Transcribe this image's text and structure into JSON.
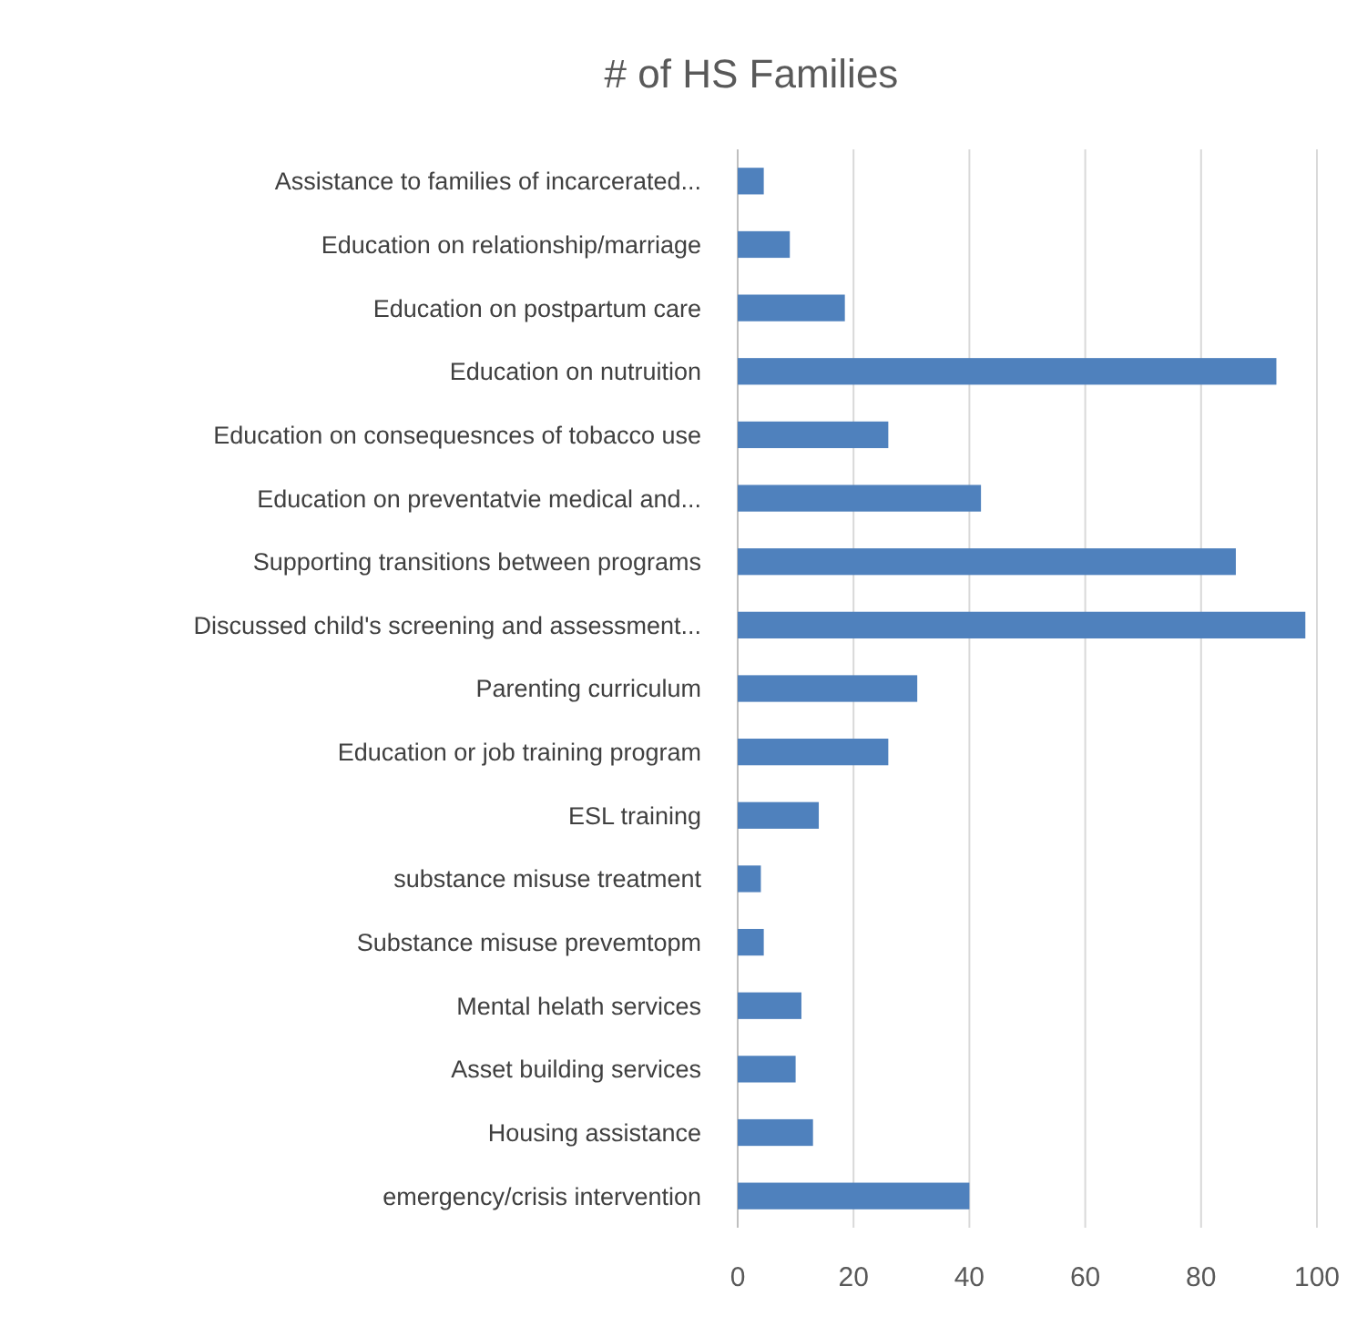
{
  "chart_data": {
    "type": "bar",
    "orientation": "horizontal",
    "title": "# of HS Families",
    "categories": [
      "Assistance to families of incarcerated...",
      "Education on relationship/marriage",
      "Education on postpartum care",
      "Education on nutruition",
      "Education on consequesnces of tobacco use",
      "Education on preventatvie medical and...",
      "Supporting transitions between programs",
      "Discussed child's screening and assessment...",
      "Parenting curriculum",
      "Education or job training program",
      "ESL training",
      "substance misuse treatment",
      "Substance misuse prevemtopm",
      "Mental helath services",
      "Asset building services",
      "Housing assistance",
      "emergency/crisis intervention"
    ],
    "values": [
      4.5,
      9,
      18.5,
      93,
      26,
      42,
      86,
      98,
      31,
      26,
      14,
      4,
      4.5,
      11,
      10,
      13,
      40
    ],
    "color": "#4f81bd",
    "xlim": [
      0,
      100
    ],
    "xticks": [
      0,
      20,
      40,
      60,
      80,
      100
    ],
    "grid": "x"
  }
}
